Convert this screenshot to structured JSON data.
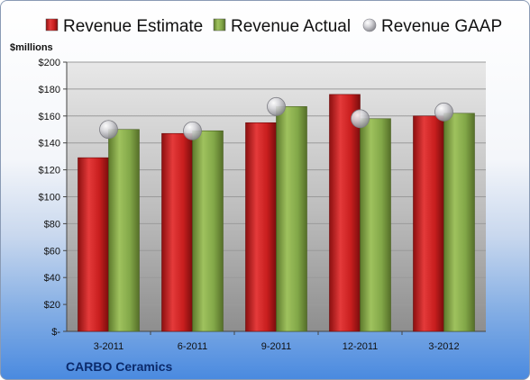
{
  "chart_data": {
    "type": "bar",
    "ylabel": "$millions",
    "ylim": [
      0,
      200
    ],
    "ytick_step": 20,
    "ytick_labels": [
      "$-",
      "$20",
      "$40",
      "$60",
      "$80",
      "$100",
      "$120",
      "$140",
      "$160",
      "$180",
      "$200"
    ],
    "categories": [
      "3-2011",
      "6-2011",
      "9-2011",
      "12-2011",
      "3-2012"
    ],
    "series": [
      {
        "name": "Revenue Estimate",
        "type": "bar",
        "color": "#d42a2a",
        "values": [
          129,
          147,
          155,
          176,
          160
        ]
      },
      {
        "name": "Revenue Actual",
        "type": "bar",
        "color": "#8bb04e",
        "values": [
          150,
          149,
          167,
          158,
          162
        ]
      },
      {
        "name": "Revenue GAAP",
        "type": "scatter",
        "color": "#c8c8cc",
        "values": [
          150,
          149,
          167,
          158,
          163
        ]
      }
    ],
    "grid": true,
    "legend": "top"
  },
  "company": "CARBO Ceramics",
  "colors": {
    "plot_background_top": "#e8e8e8",
    "plot_background_bottom": "#8e8e8e",
    "frame_gradient_bottom": "#4a8ae0",
    "company_text": "#0b2a6b"
  }
}
